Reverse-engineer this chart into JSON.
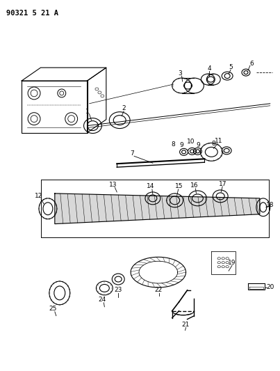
{
  "title": "90321 5 21 A",
  "background_color": "#ffffff",
  "line_color": "#000000",
  "figsize": [
    4.03,
    5.33
  ],
  "dpi": 100
}
